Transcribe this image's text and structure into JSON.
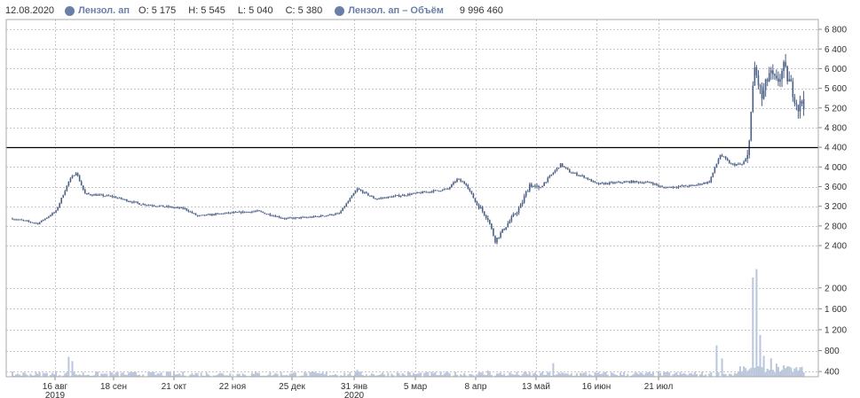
{
  "legend": {
    "date": "12.08.2020",
    "price_series_name": "Лензол. ап",
    "open": "O: 5 175",
    "high": "H: 5 545",
    "low": "L: 5 040",
    "close": "C: 5 380",
    "volume_series_name": "Лензол. ап – Объём",
    "volume_value": "9 996 460"
  },
  "colors": {
    "candle": "#4a5f86",
    "volume": "#b9c6dc",
    "grid": "#c8c8c8",
    "hline": "#000000",
    "legend_dot": "#6a7fa8"
  },
  "chart_data": {
    "type": "candlestick",
    "x_tick_labels": [
      {
        "label": "16 авг",
        "sublabel": "2019"
      },
      {
        "label": "18 сен",
        "sublabel": ""
      },
      {
        "label": "21 окт",
        "sublabel": ""
      },
      {
        "label": "22 ноя",
        "sublabel": ""
      },
      {
        "label": "25 дек",
        "sublabel": ""
      },
      {
        "label": "31 янв",
        "sublabel": "2020"
      },
      {
        "label": "5 мар",
        "sublabel": ""
      },
      {
        "label": "8 апр",
        "sublabel": ""
      },
      {
        "label": "13 май",
        "sublabel": ""
      },
      {
        "label": "16 июн",
        "sublabel": ""
      },
      {
        "label": "21 июл",
        "sublabel": ""
      }
    ],
    "price_axis": {
      "ticks": [
        2400,
        2800,
        3200,
        3600,
        4000,
        4400,
        4800,
        5200,
        5600,
        6000,
        6400,
        6800
      ],
      "tick_labels": [
        "2 400",
        "2 800",
        "3 200",
        "3 600",
        "4 000",
        "4 400",
        "4 800",
        "5 200",
        "5 600",
        "6 000",
        "6 400",
        "6 800"
      ],
      "range": [
        1950,
        7000
      ]
    },
    "volume_axis": {
      "ticks": [
        400,
        800,
        1200,
        1600,
        2000
      ],
      "tick_labels": [
        "400",
        "800",
        "1 200",
        "1 600",
        "2 000"
      ],
      "range": [
        300,
        2420
      ]
    },
    "horizontal_line": 4400,
    "price_path": [
      {
        "d": 0,
        "p": 2950
      },
      {
        "d": 14,
        "p": 2850
      },
      {
        "d": 24,
        "p": 3100
      },
      {
        "d": 31,
        "p": 3700
      },
      {
        "d": 35,
        "p": 3900
      },
      {
        "d": 40,
        "p": 3450
      },
      {
        "d": 55,
        "p": 3400
      },
      {
        "d": 70,
        "p": 3250
      },
      {
        "d": 95,
        "p": 3150
      },
      {
        "d": 102,
        "p": 3000
      },
      {
        "d": 115,
        "p": 3050
      },
      {
        "d": 135,
        "p": 3100
      },
      {
        "d": 150,
        "p": 2950
      },
      {
        "d": 165,
        "p": 2980
      },
      {
        "d": 180,
        "p": 3050
      },
      {
        "d": 185,
        "p": 3300
      },
      {
        "d": 190,
        "p": 3550
      },
      {
        "d": 200,
        "p": 3350
      },
      {
        "d": 220,
        "p": 3450
      },
      {
        "d": 240,
        "p": 3550
      },
      {
        "d": 245,
        "p": 3750
      },
      {
        "d": 250,
        "p": 3650
      },
      {
        "d": 255,
        "p": 3300
      },
      {
        "d": 262,
        "p": 2950
      },
      {
        "d": 266,
        "p": 2500
      },
      {
        "d": 272,
        "p": 2800
      },
      {
        "d": 280,
        "p": 3200
      },
      {
        "d": 285,
        "p": 3650
      },
      {
        "d": 290,
        "p": 3550
      },
      {
        "d": 302,
        "p": 4050
      },
      {
        "d": 307,
        "p": 3900
      },
      {
        "d": 315,
        "p": 3800
      },
      {
        "d": 322,
        "p": 3650
      },
      {
        "d": 340,
        "p": 3700
      },
      {
        "d": 352,
        "p": 3680
      },
      {
        "d": 358,
        "p": 3580
      },
      {
        "d": 375,
        "p": 3620
      },
      {
        "d": 384,
        "p": 3700
      },
      {
        "d": 390,
        "p": 4250
      },
      {
        "d": 396,
        "p": 4050
      },
      {
        "d": 402,
        "p": 4050
      },
      {
        "d": 405,
        "p": 4200
      },
      {
        "d": 409,
        "p": 6000
      },
      {
        "d": 413,
        "p": 5400
      },
      {
        "d": 417,
        "p": 5900
      },
      {
        "d": 421,
        "p": 5700
      },
      {
        "d": 425,
        "p": 6000
      },
      {
        "d": 430,
        "p": 5550
      },
      {
        "d": 433,
        "p": 5200
      },
      {
        "d": 436,
        "p": 5380
      }
    ],
    "volume_spikes": [
      {
        "d": 31,
        "v": 680
      },
      {
        "d": 33,
        "v": 600
      },
      {
        "d": 190,
        "v": 430
      },
      {
        "d": 262,
        "v": 420
      },
      {
        "d": 298,
        "v": 560
      },
      {
        "d": 388,
        "v": 900
      },
      {
        "d": 391,
        "v": 650
      },
      {
        "d": 401,
        "v": 500
      },
      {
        "d": 408,
        "v": 2200
      },
      {
        "d": 410,
        "v": 2360
      },
      {
        "d": 412,
        "v": 1100
      },
      {
        "d": 414,
        "v": 700
      },
      {
        "d": 418,
        "v": 650
      },
      {
        "d": 421,
        "v": 550
      },
      {
        "d": 425,
        "v": 520
      }
    ],
    "last_candle": {
      "date": "12.08.2020",
      "open": 5175,
      "high": 5545,
      "low": 5040,
      "close": 5380,
      "volume": 9996460
    }
  }
}
